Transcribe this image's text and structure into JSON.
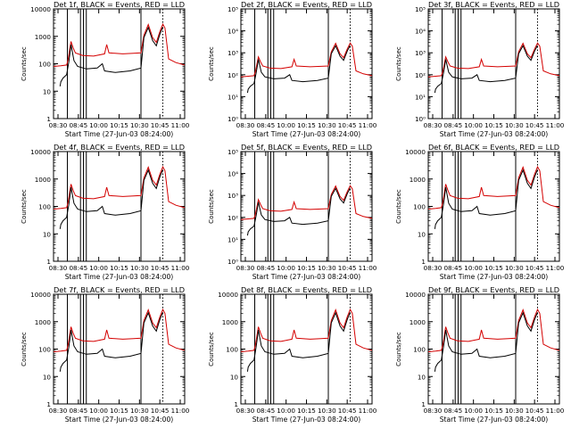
{
  "colors": {
    "events": "#000000",
    "lld": "#d40000",
    "axes": "#000000",
    "background": "#ffffff"
  },
  "chart_data": {
    "type": "line",
    "layout": "3x3 grid of panels",
    "xlabel": "Start Time (27-Jun-03 08:24:00)",
    "ylabel": "Counts/sec",
    "x_ticks": [
      "08:30",
      "08:45",
      "10:00",
      "10:15",
      "10:30",
      "10:45",
      "11:00"
    ],
    "x_range_minutes": [
      0,
      180
    ],
    "vertical_markers_minutes": [
      19,
      37,
      41,
      45,
      120
    ],
    "dotted_marker_minutes": [
      150
    ],
    "shared_series": [
      {
        "name": "RED = LLD",
        "color": "#d40000",
        "points": [
          [
            0,
            80
          ],
          [
            10,
            85
          ],
          [
            18,
            90
          ],
          [
            20,
            140
          ],
          [
            24,
            650
          ],
          [
            27,
            380
          ],
          [
            30,
            250
          ],
          [
            40,
            200
          ],
          [
            55,
            190
          ],
          [
            70,
            230
          ],
          [
            73,
            500
          ],
          [
            76,
            250
          ],
          [
            95,
            230
          ],
          [
            110,
            240
          ],
          [
            120,
            250
          ],
          [
            124,
            1100
          ],
          [
            130,
            2700
          ],
          [
            136,
            900
          ],
          [
            141,
            600
          ],
          [
            146,
            1500
          ],
          [
            150,
            2800
          ],
          [
            153,
            2000
          ],
          [
            158,
            150
          ],
          [
            168,
            110
          ],
          [
            180,
            90
          ]
        ]
      },
      {
        "name": "BLACK = Events",
        "color": "#000000",
        "points": [
          [
            9,
            15
          ],
          [
            10,
            22
          ],
          [
            13,
            30
          ],
          [
            18,
            40
          ],
          [
            21,
            120
          ],
          [
            24,
            500
          ],
          [
            28,
            130
          ],
          [
            33,
            80
          ],
          [
            45,
            65
          ],
          [
            60,
            70
          ],
          [
            67,
            100
          ],
          [
            70,
            55
          ],
          [
            85,
            48
          ],
          [
            105,
            55
          ],
          [
            120,
            70
          ],
          [
            124,
            900
          ],
          [
            130,
            2100
          ],
          [
            136,
            700
          ],
          [
            141,
            450
          ],
          [
            146,
            1200
          ],
          [
            150,
            2200
          ]
        ]
      }
    ],
    "panels": [
      {
        "title": "Det 1f, BLACK = Events, RED = LLD",
        "ylim": [
          1,
          10000
        ],
        "y_ticks": [
          "1",
          "10",
          "100",
          "1000",
          "10000"
        ]
      },
      {
        "title": "Det 2f, BLACK = Events, RED = LLD",
        "ylim": [
          1,
          100000
        ],
        "y_ticks": [
          "10⁰",
          "10¹",
          "10²",
          "10³",
          "10⁴",
          "10⁵"
        ]
      },
      {
        "title": "Det 3f, BLACK = Events, RED = LLD",
        "ylim": [
          1,
          100000
        ],
        "y_ticks": [
          "10⁰",
          "10¹",
          "10²",
          "10³",
          "10⁴",
          "10⁵"
        ]
      },
      {
        "title": "Det 4f, BLACK = Events, RED = LLD",
        "ylim": [
          1,
          10000
        ],
        "y_ticks": [
          "1",
          "10",
          "100",
          "1000",
          "10000"
        ]
      },
      {
        "title": "Det 5f, BLACK = Events, RED = LLD",
        "ylim": [
          1,
          100000
        ],
        "y_ticks": [
          "10⁰",
          "10¹",
          "10²",
          "10³",
          "10⁴",
          "10⁵"
        ]
      },
      {
        "title": "Det 6f, BLACK = Events, RED = LLD",
        "ylim": [
          1,
          10000
        ],
        "y_ticks": [
          "1",
          "10",
          "100",
          "1000",
          "10000"
        ]
      },
      {
        "title": "Det 7f, BLACK = Events, RED = LLD",
        "ylim": [
          1,
          10000
        ],
        "y_ticks": [
          "1",
          "10",
          "100",
          "1000",
          "10000"
        ]
      },
      {
        "title": "Det 8f, BLACK = Events, RED = LLD",
        "ylim": [
          1,
          10000
        ],
        "y_ticks": [
          "1",
          "10",
          "100",
          "1000",
          "10000"
        ]
      },
      {
        "title": "Det 9f, BLACK = Events, RED = LLD",
        "ylim": [
          1,
          10000
        ],
        "y_ticks": [
          "1",
          "10",
          "100",
          "1000",
          "10000"
        ]
      }
    ]
  }
}
